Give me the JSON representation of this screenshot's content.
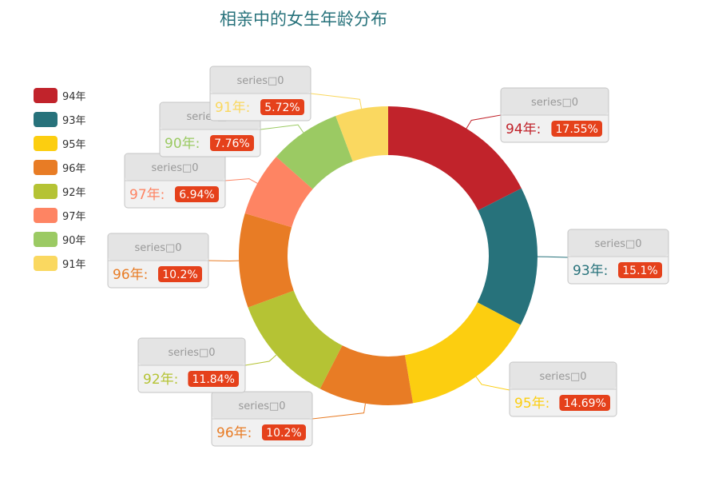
{
  "chart_data": {
    "type": "pie",
    "variant": "donut",
    "title": "相亲中的女生年龄分布",
    "series_label": "series□0",
    "legend": {
      "placement": "left",
      "entries": [
        "94年",
        "93年",
        "95年",
        "96年",
        "92年",
        "97年",
        "90年",
        "91年"
      ]
    },
    "slices": [
      {
        "label": "94年",
        "value": 17.55,
        "display": "17.55%",
        "color": "#c1232b"
      },
      {
        "label": "93年",
        "value": 15.1,
        "display": "15.1%",
        "color": "#27727b"
      },
      {
        "label": "95年",
        "value": 14.69,
        "display": "14.69%",
        "color": "#fcce10"
      },
      {
        "label": "96年",
        "value": 10.2,
        "display": "10.2%",
        "color": "#e87c25"
      },
      {
        "label": "92年",
        "value": 11.84,
        "display": "11.84%",
        "color": "#b5c334"
      },
      {
        "label": "96年",
        "value": 10.2,
        "display": "10.2%",
        "color": "#e87c25"
      },
      {
        "label": "97年",
        "value": 6.94,
        "display": "6.94%",
        "color": "#fe8463"
      },
      {
        "label": "90年",
        "value": 7.76,
        "display": "7.76%",
        "color": "#9bca63"
      },
      {
        "label": "91年",
        "value": 5.72,
        "display": "5.72%",
        "color": "#fad860"
      }
    ],
    "legend_colors": [
      "#c1232b",
      "#27727b",
      "#fcce10",
      "#e87c25",
      "#b5c334",
      "#fe8463",
      "#9bca63",
      "#fad860"
    ],
    "badge_color": "#e5411b"
  }
}
